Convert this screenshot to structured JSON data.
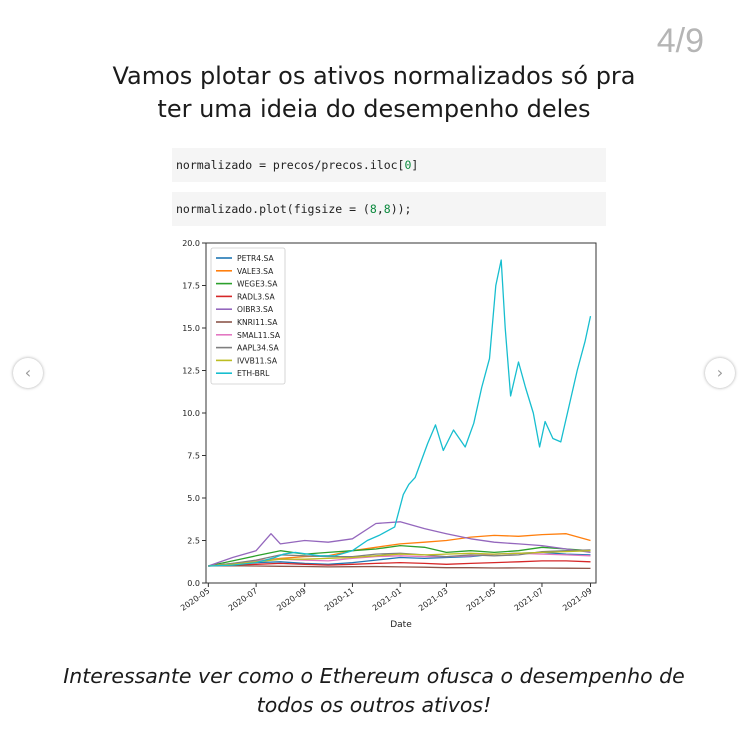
{
  "page_counter": "4/9",
  "heading_line1": "Vamos plotar os ativos normalizados só pra",
  "heading_line2": "ter uma ideia do desempenho deles",
  "code": {
    "line1_prefix": "normalizado = precos/precos.iloc[",
    "line1_num": "0",
    "line1_suffix": "]",
    "line2_prefix": "normalizado.plot(figsize = (",
    "line2_num1": "8",
    "line2_sep": ",",
    "line2_num2": "8",
    "line2_suffix": "));"
  },
  "nav": {
    "prev_icon": "chevron-left-icon",
    "next_icon": "chevron-right-icon",
    "prev_glyph": "‹",
    "next_glyph": "›"
  },
  "caption_line1": "Interessante ver como o Ethereum ofusca o desempenho de",
  "caption_line2": "todos os outros ativos!",
  "chart_data": {
    "type": "line",
    "xlabel": "Date",
    "ylabel": "",
    "ylim": [
      0,
      20
    ],
    "yticks": [
      "0.0",
      "2.5",
      "5.0",
      "7.5",
      "10.0",
      "12.5",
      "15.0",
      "17.5",
      "20.0"
    ],
    "xticks": [
      "2020-05",
      "2020-07",
      "2020-09",
      "2020-11",
      "2021-01",
      "2021-03",
      "2021-05",
      "2021-07",
      "2021-09"
    ],
    "xlim": [
      "2020-04-28",
      "2021-09-08"
    ],
    "grid": false,
    "legend_position": "top-left",
    "series": [
      {
        "name": "PETR4.SA",
        "color": "#1f77b4",
        "x": [
          "2020-05-01",
          "2020-06-01",
          "2020-07-01",
          "2020-08-01",
          "2020-09-01",
          "2020-10-01",
          "2020-11-01",
          "2020-12-01",
          "2021-01-01",
          "2021-02-01",
          "2021-03-01",
          "2021-04-01",
          "2021-05-01",
          "2021-06-01",
          "2021-07-01",
          "2021-08-01",
          "2021-09-01"
        ],
        "y": [
          1.0,
          1.1,
          1.2,
          1.25,
          1.15,
          1.1,
          1.2,
          1.35,
          1.5,
          1.45,
          1.5,
          1.55,
          1.7,
          1.75,
          1.8,
          1.7,
          1.65
        ]
      },
      {
        "name": "VALE3.SA",
        "color": "#ff7f0e",
        "x": [
          "2020-05-01",
          "2020-06-01",
          "2020-07-01",
          "2020-08-01",
          "2020-09-01",
          "2020-10-01",
          "2020-11-01",
          "2020-12-01",
          "2021-01-01",
          "2021-02-01",
          "2021-03-01",
          "2021-04-01",
          "2021-05-01",
          "2021-06-01",
          "2021-07-01",
          "2021-08-01",
          "2021-09-01"
        ],
        "y": [
          1.0,
          1.1,
          1.3,
          1.45,
          1.55,
          1.6,
          1.9,
          2.1,
          2.3,
          2.4,
          2.5,
          2.7,
          2.8,
          2.75,
          2.85,
          2.9,
          2.5
        ]
      },
      {
        "name": "WEGE3.SA",
        "color": "#2ca02c",
        "x": [
          "2020-05-01",
          "2020-06-01",
          "2020-07-01",
          "2020-08-01",
          "2020-09-01",
          "2020-10-01",
          "2020-11-01",
          "2020-12-01",
          "2021-01-01",
          "2021-02-01",
          "2021-03-01",
          "2021-04-01",
          "2021-05-01",
          "2021-06-01",
          "2021-07-01",
          "2021-08-01",
          "2021-09-01"
        ],
        "y": [
          1.0,
          1.3,
          1.6,
          1.9,
          1.7,
          1.8,
          1.9,
          2.0,
          2.2,
          2.1,
          1.8,
          1.9,
          1.8,
          1.9,
          2.1,
          2.0,
          1.9
        ]
      },
      {
        "name": "RADL3.SA",
        "color": "#d62728",
        "x": [
          "2020-05-01",
          "2020-06-01",
          "2020-07-01",
          "2020-08-01",
          "2020-09-01",
          "2020-10-01",
          "2020-11-01",
          "2020-12-01",
          "2021-01-01",
          "2021-02-01",
          "2021-03-01",
          "2021-04-01",
          "2021-05-01",
          "2021-06-01",
          "2021-07-01",
          "2021-08-01",
          "2021-09-01"
        ],
        "y": [
          1.0,
          1.05,
          1.1,
          1.15,
          1.1,
          1.05,
          1.1,
          1.15,
          1.2,
          1.15,
          1.1,
          1.15,
          1.2,
          1.25,
          1.3,
          1.3,
          1.25
        ]
      },
      {
        "name": "OIBR3.SA",
        "color": "#9467bd",
        "x": [
          "2020-05-01",
          "2020-06-01",
          "2020-07-01",
          "2020-07-20",
          "2020-08-01",
          "2020-09-01",
          "2020-10-01",
          "2020-11-01",
          "2020-12-01",
          "2021-01-01",
          "2021-02-01",
          "2021-03-01",
          "2021-04-01",
          "2021-05-01",
          "2021-06-01",
          "2021-07-01",
          "2021-08-01",
          "2021-09-01"
        ],
        "y": [
          1.0,
          1.5,
          1.9,
          2.9,
          2.3,
          2.5,
          2.4,
          2.6,
          3.5,
          3.6,
          3.2,
          2.9,
          2.6,
          2.4,
          2.3,
          2.2,
          2.0,
          1.8
        ]
      },
      {
        "name": "KNRI11.SA",
        "color": "#8c564b",
        "x": [
          "2020-05-01",
          "2020-06-01",
          "2020-07-01",
          "2020-08-01",
          "2020-09-01",
          "2020-10-01",
          "2020-11-01",
          "2020-12-01",
          "2021-01-01",
          "2021-02-01",
          "2021-03-01",
          "2021-04-01",
          "2021-05-01",
          "2021-06-01",
          "2021-07-01",
          "2021-08-01",
          "2021-09-01"
        ],
        "y": [
          1.0,
          1.02,
          1.0,
          0.98,
          0.97,
          0.95,
          0.96,
          0.97,
          0.95,
          0.93,
          0.9,
          0.9,
          0.88,
          0.89,
          0.88,
          0.87,
          0.86
        ]
      },
      {
        "name": "SMAL11.SA",
        "color": "#e377c2",
        "x": [
          "2020-05-01",
          "2020-06-01",
          "2020-07-01",
          "2020-08-01",
          "2020-09-01",
          "2020-10-01",
          "2020-11-01",
          "2020-12-01",
          "2021-01-01",
          "2021-02-01",
          "2021-03-01",
          "2021-04-01",
          "2021-05-01",
          "2021-06-01",
          "2021-07-01",
          "2021-08-01",
          "2021-09-01"
        ],
        "y": [
          1.0,
          1.15,
          1.3,
          1.4,
          1.35,
          1.3,
          1.45,
          1.55,
          1.6,
          1.55,
          1.55,
          1.6,
          1.7,
          1.75,
          1.7,
          1.65,
          1.6
        ]
      },
      {
        "name": "AAPL34.SA",
        "color": "#7f7f7f",
        "x": [
          "2020-05-01",
          "2020-06-01",
          "2020-07-01",
          "2020-08-01",
          "2020-09-01",
          "2020-10-01",
          "2020-11-01",
          "2020-12-01",
          "2021-01-01",
          "2021-02-01",
          "2021-03-01",
          "2021-04-01",
          "2021-05-01",
          "2021-06-01",
          "2021-07-01",
          "2021-08-01",
          "2021-09-01"
        ],
        "y": [
          1.0,
          1.15,
          1.35,
          1.65,
          1.6,
          1.55,
          1.55,
          1.7,
          1.75,
          1.65,
          1.55,
          1.65,
          1.6,
          1.65,
          1.85,
          1.9,
          1.95
        ]
      },
      {
        "name": "IVVB11.SA",
        "color": "#bcbd22",
        "x": [
          "2020-05-01",
          "2020-06-01",
          "2020-07-01",
          "2020-08-01",
          "2020-09-01",
          "2020-10-01",
          "2020-11-01",
          "2020-12-01",
          "2021-01-01",
          "2021-02-01",
          "2021-03-01",
          "2021-04-01",
          "2021-05-01",
          "2021-06-01",
          "2021-07-01",
          "2021-08-01",
          "2021-09-01"
        ],
        "y": [
          1.0,
          1.1,
          1.25,
          1.4,
          1.4,
          1.45,
          1.5,
          1.6,
          1.7,
          1.65,
          1.7,
          1.75,
          1.7,
          1.75,
          1.8,
          1.85,
          1.9
        ]
      },
      {
        "name": "ETH-BRL",
        "color": "#17becf",
        "x": [
          "2020-05-01",
          "2020-06-01",
          "2020-07-01",
          "2020-07-25",
          "2020-08-05",
          "2020-08-20",
          "2020-09-05",
          "2020-09-20",
          "2020-10-10",
          "2020-11-01",
          "2020-11-20",
          "2020-12-05",
          "2020-12-25",
          "2021-01-05",
          "2021-01-12",
          "2021-01-20",
          "2021-02-05",
          "2021-02-15",
          "2021-02-25",
          "2021-03-10",
          "2021-03-25",
          "2021-04-05",
          "2021-04-15",
          "2021-04-25",
          "2021-05-03",
          "2021-05-10",
          "2021-05-15",
          "2021-05-22",
          "2021-06-01",
          "2021-06-10",
          "2021-06-20",
          "2021-06-28",
          "2021-07-05",
          "2021-07-15",
          "2021-07-25",
          "2021-08-05",
          "2021-08-15",
          "2021-08-25",
          "2021-09-01"
        ],
        "y": [
          1.0,
          1.05,
          1.2,
          1.5,
          1.7,
          1.8,
          1.7,
          1.6,
          1.6,
          1.9,
          2.5,
          2.8,
          3.3,
          5.2,
          5.8,
          6.2,
          8.2,
          9.3,
          7.8,
          9.0,
          8.0,
          9.4,
          11.5,
          13.2,
          17.5,
          19.0,
          15.0,
          11.0,
          13.0,
          11.5,
          10.0,
          8.0,
          9.5,
          8.5,
          8.3,
          10.5,
          12.5,
          14.2,
          15.7
        ]
      }
    ]
  }
}
